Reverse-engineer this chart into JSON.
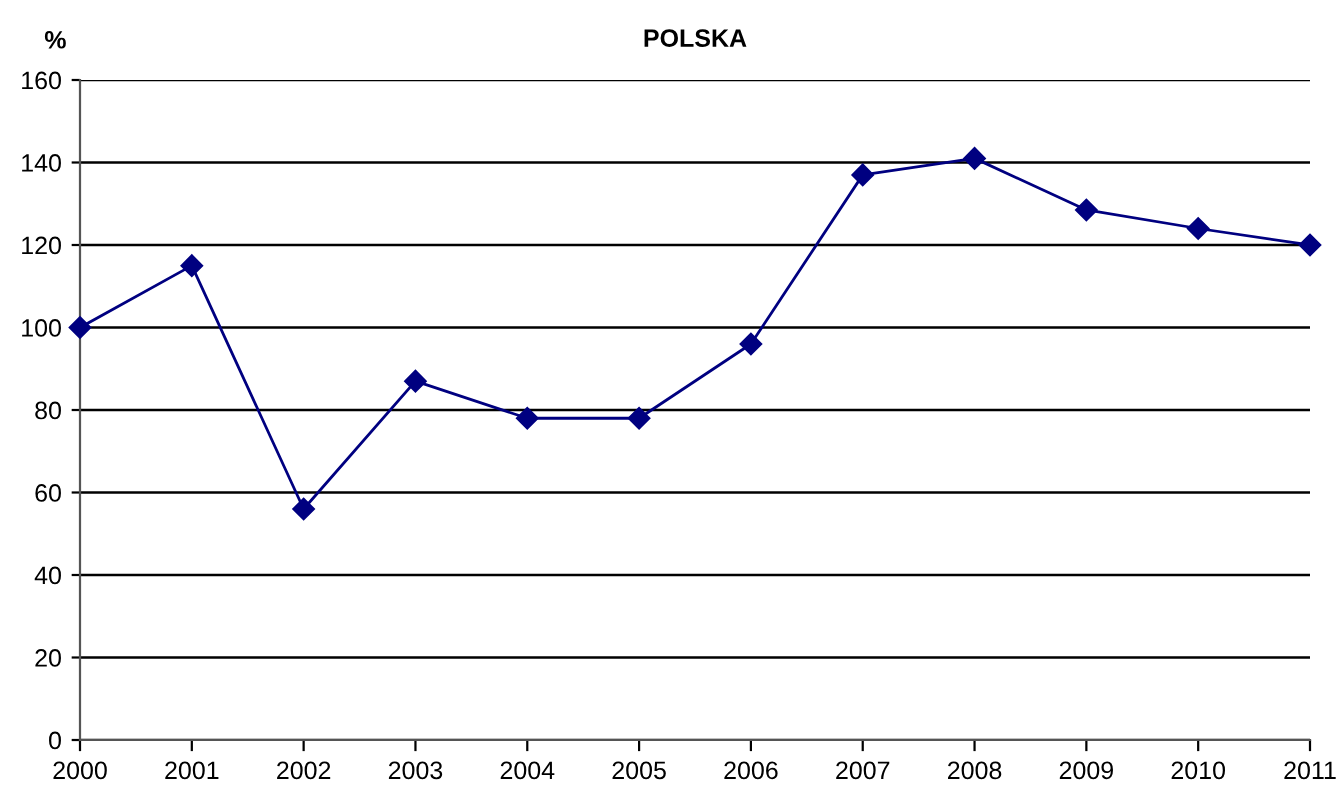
{
  "chart_data": {
    "type": "line",
    "title": "POLSKA",
    "ylabel": "%",
    "x": [
      2000,
      2001,
      2002,
      2003,
      2004,
      2005,
      2006,
      2007,
      2008,
      2009,
      2010,
      2011
    ],
    "series": [
      {
        "color": "#000080",
        "values": [
          100,
          115,
          56,
          87,
          78,
          78,
          96,
          137,
          141,
          128.5,
          124,
          120
        ]
      }
    ],
    "xlim": [
      2000,
      2011
    ],
    "xticks": [
      2000,
      2001,
      2002,
      2003,
      2004,
      2005,
      2006,
      2007,
      2008,
      2009,
      2010,
      2011
    ],
    "ylim": [
      0,
      160
    ],
    "yticks": [
      0,
      20,
      40,
      60,
      80,
      100,
      120,
      140,
      160
    ],
    "grid": "y",
    "marker": "diamond",
    "line_style": "solid",
    "legend": false
  }
}
